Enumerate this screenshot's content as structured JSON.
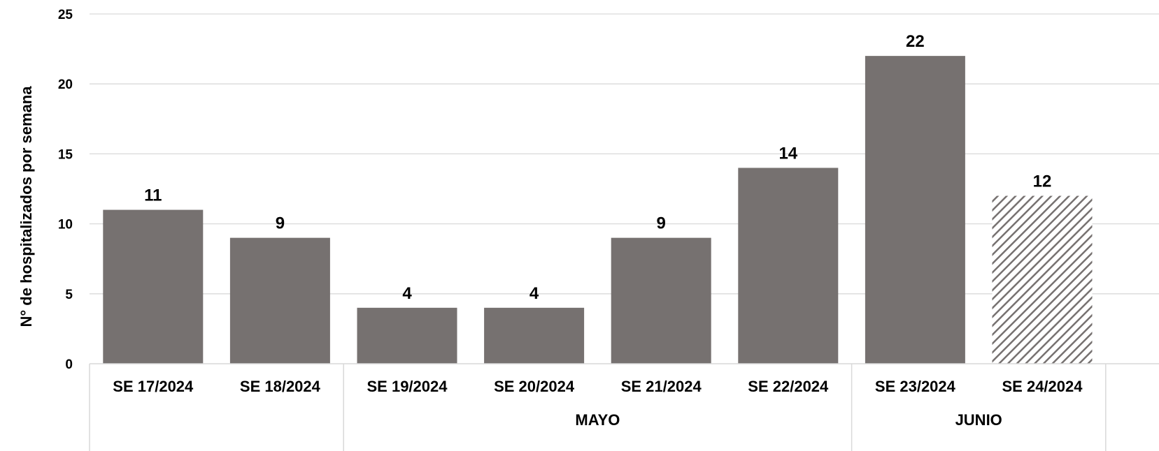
{
  "chart_data": {
    "type": "bar",
    "ylabel": "N° de hospitalizados por semana",
    "ylim": [
      0,
      25
    ],
    "yticks": [
      0,
      5,
      10,
      15,
      20,
      25
    ],
    "grid": true,
    "categories": [
      "SE 17/2024",
      "SE 18/2024",
      "SE 19/2024",
      "SE 20/2024",
      "SE 21/2024",
      "SE 22/2024",
      "SE 23/2024",
      "SE 24/2024"
    ],
    "values": [
      11,
      9,
      4,
      4,
      9,
      14,
      22,
      12
    ],
    "hatched": [
      false,
      false,
      false,
      false,
      false,
      false,
      false,
      true
    ],
    "groups": [
      {
        "label": "",
        "start": 0,
        "end": 1
      },
      {
        "label": "MAYO",
        "start": 2,
        "end": 5
      },
      {
        "label": "JUNIO",
        "start": 6,
        "end": 7
      }
    ],
    "bar_color": "#767170",
    "hatch_color": "#767170"
  }
}
